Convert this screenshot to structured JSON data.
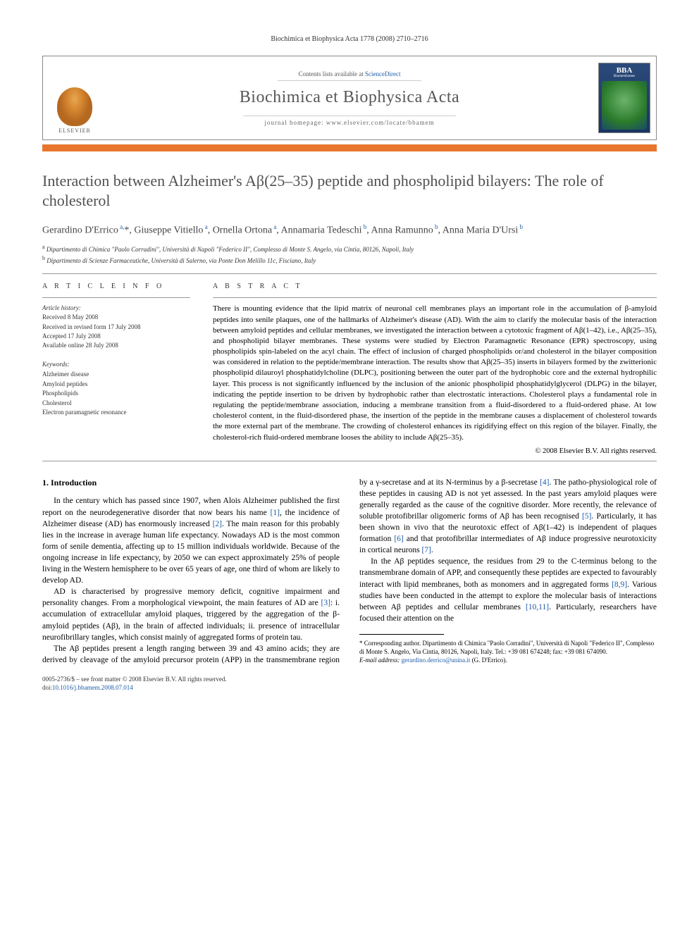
{
  "running_head": "Biochimica et Biophysica Acta 1778 (2008) 2710–2716",
  "banner": {
    "contents_prefix": "Contents lists available at ",
    "contents_link": "ScienceDirect",
    "journal": "Biochimica et Biophysica Acta",
    "homepage_label": "journal homepage: ",
    "homepage_url": "www.elsevier.com/locate/bbamem",
    "publisher": "ELSEVIER",
    "cover_bba": "BBA",
    "cover_sub": "Biomembranes"
  },
  "title": "Interaction between Alzheimer's Aβ(25–35) peptide and phospholipid bilayers: The role of cholesterol",
  "authors_html": "Gerardino D'Errico<sup> a,</sup>*, Giuseppe Vitiello<sup> a</sup>, Ornella Ortona<sup> a</sup>, Annamaria Tedeschi<sup> b</sup>, Anna Ramunno<sup> b</sup>, Anna Maria D'Ursi<sup> b</sup>",
  "affiliations": {
    "a": "Dipartimento di Chimica \"Paolo Corradini\", Università di Napoli \"Federico II\", Complesso di Monte S. Angelo, via Cintia, 80126, Napoli, Italy",
    "b": "Dipartimento di Scienze Farmaceutiche, Università di Salerno, via Ponte Don Melillo 11c, Fisciano, Italy"
  },
  "article_info": {
    "head": "A R T I C L E   I N F O",
    "history_label": "Article history:",
    "received": "Received 8 May 2008",
    "revised": "Received in revised form 17 July 2008",
    "accepted": "Accepted 17 July 2008",
    "online": "Available online 28 July 2008",
    "keywords_label": "Keywords:",
    "keywords": [
      "Alzheimer disease",
      "Amyloid peptides",
      "Phospholipids",
      "Cholesterol",
      "Electron paramagnetic resonance"
    ]
  },
  "abstract": {
    "head": "A B S T R A C T",
    "text": "There is mounting evidence that the lipid matrix of neuronal cell membranes plays an important role in the accumulation of β-amyloid peptides into senile plaques, one of the hallmarks of Alzheimer's disease (AD). With the aim to clarify the molecular basis of the interaction between amyloid peptides and cellular membranes, we investigated the interaction between a cytotoxic fragment of Aβ(1–42), i.e., Aβ(25–35), and phospholipid bilayer membranes. These systems were studied by Electron Paramagnetic Resonance (EPR) spectroscopy, using phospholipids spin-labeled on the acyl chain. The effect of inclusion of charged phospholipids or/and cholesterol in the bilayer composition was considered in relation to the peptide/membrane interaction. The results show that Aβ(25–35) inserts in bilayers formed by the zwitterionic phospholipid dilauroyl phosphatidylcholine (DLPC), positioning between the outer part of the hydrophobic core and the external hydrophilic layer. This process is not significantly influenced by the inclusion of the anionic phospholipid phosphatidylglycerol (DLPG) in the bilayer, indicating the peptide insertion to be driven by hydrophobic rather than electrostatic interactions. Cholesterol plays a fundamental role in regulating the peptide/membrane association, inducing a membrane transition from a fluid-disordered to a fluid-ordered phase. At low cholesterol content, in the fluid-disordered phase, the insertion of the peptide in the membrane causes a displacement of cholesterol towards the more external part of the membrane. The crowding of cholesterol enhances its rigidifying effect on this region of the bilayer. Finally, the cholesterol-rich fluid-ordered membrane looses the ability to include Aβ(25–35).",
    "copyright": "© 2008 Elsevier B.V. All rights reserved."
  },
  "intro": {
    "heading": "1. Introduction",
    "p1_a": "In the century which has passed since 1907, when Alois Alzheimer published the first report on the neurodegenerative disorder that now bears his name ",
    "p1_b": ", the incidence of Alzheimer disease (AD) has enormously increased ",
    "p1_c": ". The main reason for this probably lies in the increase in average human life expectancy. Nowadays AD is the most common form of senile dementia, affecting up to 15 million individuals worldwide. Because of the ongoing increase in life expectancy, by 2050 we can expect approximately 25% of people living in the Western hemisphere to be over 65 years of age, one third of whom are likely to develop AD.",
    "p2_a": "AD is characterised by progressive memory deficit, cognitive impairment and personality changes. From a morphological viewpoint, the main features of AD are ",
    "p2_b": ": i. accumulation of extracellular amyloid plaques, triggered by the aggregation of the β-amyloid ",
    "p2_c": "peptides (Aβ), in the brain of affected individuals; ii. presence of intracellular neurofibrillary tangles, which consist mainly of aggregated forms of protein tau.",
    "p3_a": "The Aβ peptides present a length ranging between 39 and 43 amino acids; they are derived by cleavage of the amyloid precursor protein (APP) in the transmembrane region by a γ-secretase and at its N-terminus by a β-secretase ",
    "p3_b": ". The patho-physiological role of these peptides in causing AD is not yet assessed. In the past years amyloid plaques were generally regarded as the cause of the cognitive disorder. More recently, the relevance of soluble protofibrillar oligomeric forms of Aβ has been recognised ",
    "p3_c": ". Particularly, it has been shown in vivo that the neurotoxic effect of Aβ(1–42) is independent of plaques formation ",
    "p3_d": " and that protofibrillar intermediates of Aβ induce progressive neurotoxicity in cortical neurons ",
    "p3_e": ".",
    "p4_a": "In the Aβ peptides sequence, the residues from 29 to the C-terminus belong to the transmembrane domain of APP, and consequently these peptides are expected to favourably interact with lipid membranes, both as monomers and in aggregated forms ",
    "p4_b": ". Various studies have been conducted in the attempt to explore the molecular basis of interactions between Aβ peptides and cellular membranes ",
    "p4_c": ". Particularly, researchers have focused their attention on the"
  },
  "refs": {
    "r1": "[1]",
    "r2": "[2]",
    "r3": "[3]",
    "r4": "[4]",
    "r5": "[5]",
    "r6": "[6]",
    "r7": "[7]",
    "r89": "[8,9]",
    "r1011": "[10,11]"
  },
  "footnotes": {
    "corr": "* Corresponding author. Dipartimento di Chimica \"Paolo Corradini\", Università di Napoli \"Federico II\", Complesso di Monte S. Angelo, Via Cintia, 80126, Napoli, Italy. Tel.: +39 081 674248; fax: +39 081 674090.",
    "email_label": "E-mail address: ",
    "email": "gerardino.derrico@unina.it",
    "email_suffix": " (G. D'Errico)."
  },
  "bottom": {
    "line1": "0005-2736/$ – see front matter © 2008 Elsevier B.V. All rights reserved.",
    "doi_label": "doi:",
    "doi": "10.1016/j.bbamem.2008.07.014"
  },
  "colors": {
    "orange_bar": "#e8762d",
    "link": "#1a5ba8",
    "heading_gray": "#505050"
  }
}
